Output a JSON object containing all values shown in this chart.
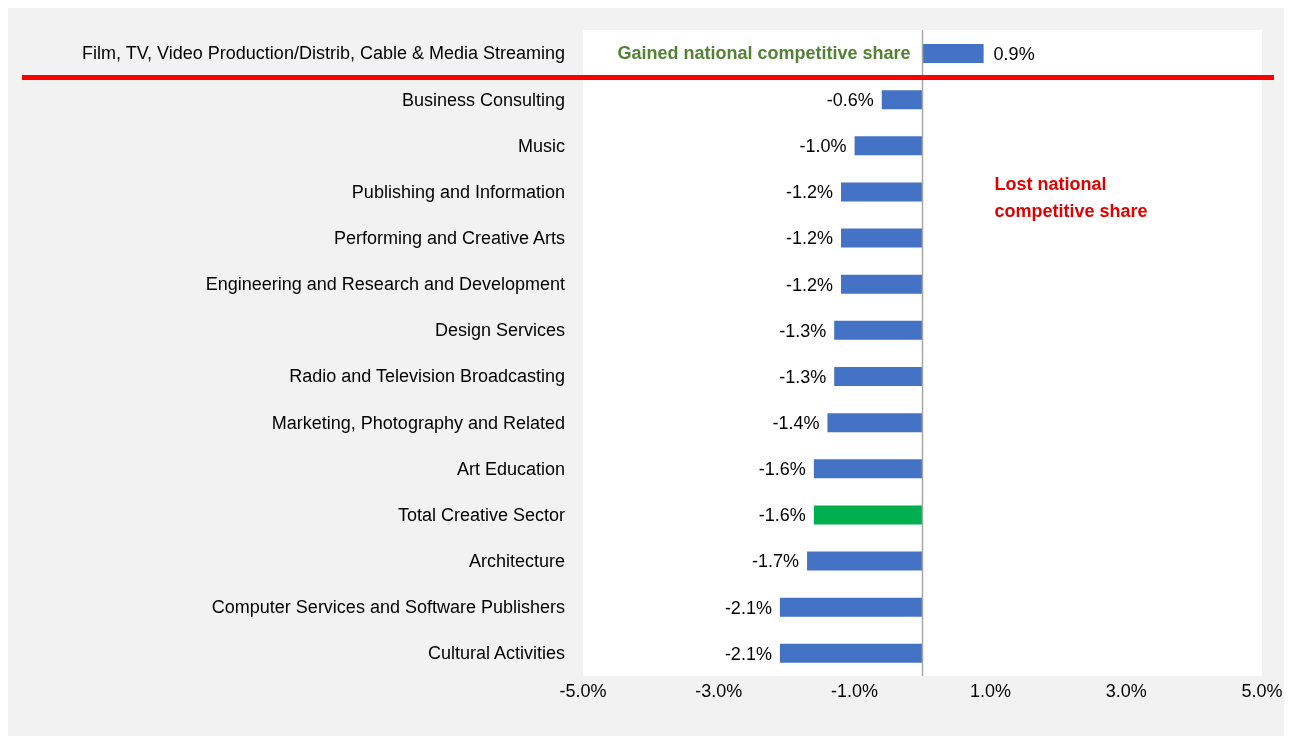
{
  "chart_data": {
    "type": "bar",
    "orientation": "horizontal",
    "categories": [
      "Film, TV, Video Production/Distrib, Cable & Media Streaming",
      "Business Consulting",
      "Music",
      "Publishing and Information",
      "Performing and Creative Arts",
      "Engineering and Research and Development",
      "Design Services",
      "Radio and Television Broadcasting",
      "Marketing, Photography and Related",
      "Art Education",
      "Total Creative Sector",
      "Architecture",
      "Computer Services and Software Publishers",
      "Cultural Activities"
    ],
    "values": [
      0.9,
      -0.6,
      -1.0,
      -1.2,
      -1.2,
      -1.2,
      -1.3,
      -1.3,
      -1.4,
      -1.6,
      -1.6,
      -1.7,
      -2.1,
      -2.1
    ],
    "value_labels": [
      "0.9%",
      "-0.6%",
      "-1.0%",
      "-1.2%",
      "-1.2%",
      "-1.2%",
      "-1.3%",
      "-1.3%",
      "-1.4%",
      "-1.6%",
      "-1.6%",
      "-1.7%",
      "-2.1%",
      "-2.1%"
    ],
    "colors": [
      "#4472c4",
      "#4472c4",
      "#4472c4",
      "#4472c4",
      "#4472c4",
      "#4472c4",
      "#4472c4",
      "#4472c4",
      "#4472c4",
      "#4472c4",
      "#00b050",
      "#4472c4",
      "#4472c4",
      "#4472c4"
    ],
    "xlim": [
      -5,
      5
    ],
    "xticks": [
      {
        "value": -5,
        "label": "-5.0%"
      },
      {
        "value": -3,
        "label": "-3.0%"
      },
      {
        "value": -1,
        "label": "-1.0%"
      },
      {
        "value": 1,
        "label": "1.0%"
      },
      {
        "value": 3,
        "label": "3.0%"
      },
      {
        "value": 5,
        "label": "5.0%"
      }
    ],
    "ref_lines": [
      {
        "axis": "x",
        "value": 0,
        "color": "#a6a6a6"
      }
    ],
    "annotations": [
      "Gained national competitive share",
      "Lost national competitive share"
    ]
  }
}
